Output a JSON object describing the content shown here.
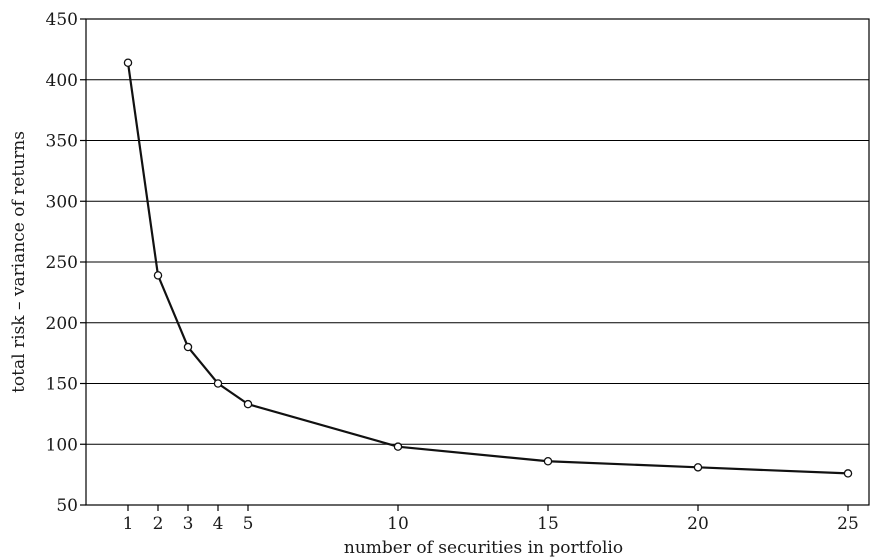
{
  "chart_data": {
    "type": "line",
    "title": "",
    "xlabel": "number of securities in portfolio",
    "ylabel": "total risk – variance of returns",
    "xlim": [
      -0.4,
      25.7
    ],
    "ylim": [
      50,
      450
    ],
    "x_ticks": [
      1,
      2,
      3,
      4,
      5,
      10,
      15,
      20,
      25
    ],
    "y_ticks": [
      50,
      100,
      150,
      200,
      250,
      300,
      350,
      400,
      450
    ],
    "grid": "horizontal",
    "series": [
      {
        "x": [
          1,
          2,
          3,
          4,
          5,
          10,
          15,
          20,
          25
        ],
        "y": [
          414,
          239,
          180,
          150,
          133,
          98,
          86,
          81,
          76
        ]
      }
    ]
  }
}
